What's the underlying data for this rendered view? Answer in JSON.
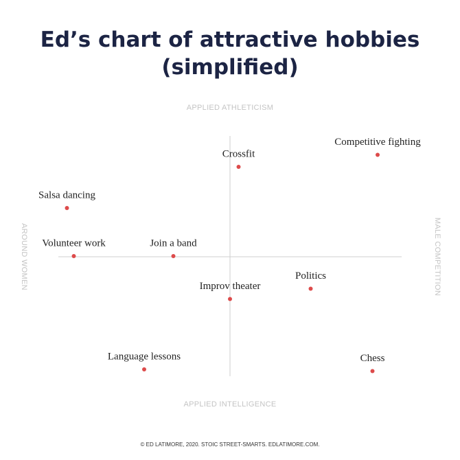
{
  "chart_data": {
    "type": "scatter",
    "title": "Ed’s chart of attractive hobbies (simplified)",
    "top_axis_label": "APPLIED ATHLETICISM",
    "bottom_axis_label": "APPLIED INTELLIGENCE",
    "left_axis_label": "AROUND WOMEN",
    "right_axis_label": "MALE COMPETITION",
    "footnote": "© ED LATIMORE, 2020. STOIC STREET-SMARTS. EDLATIMORE.COM.",
    "labels": [
      "Competitive fighting",
      "Crossfit",
      "Salsa dancing",
      "Volunteer work",
      "Join a band",
      "Politics",
      "Improv theater",
      "Language lessons",
      "Chess"
    ],
    "x": [
      8.6,
      0.5,
      -9.5,
      -9.1,
      -3.3,
      4.7,
      0,
      -5.0,
      8.3
    ],
    "values": [
      5.9,
      5.2,
      2.8,
      0,
      0,
      -1.9,
      -2.5,
      -6.6,
      -6.7
    ],
    "color": "#dd4b4b",
    "xlim": [
      -10,
      10
    ],
    "ylim": [
      -7,
      7
    ]
  }
}
